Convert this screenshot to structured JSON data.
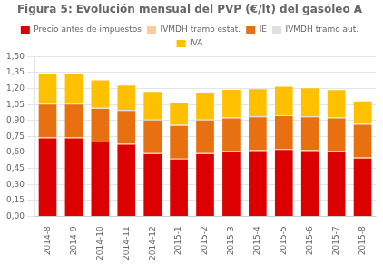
{
  "chart_data": {
    "type": "bar",
    "title": "Figura 5: Evolución mensual del PVP (€/lt) del gasóleo A",
    "categories": [
      "2014-8",
      "2014-9",
      "2014-10",
      "2014-11",
      "2014-12",
      "2015-1",
      "2015-2",
      "2015-3",
      "2015-4",
      "2015-5",
      "2015-6",
      "2015-7",
      "2015-8"
    ],
    "stacked": true,
    "series": [
      {
        "name": "Precio antes de impuestos",
        "color": "#dd0000",
        "values": [
          0.733,
          0.733,
          0.693,
          0.673,
          0.583,
          0.533,
          0.583,
          0.603,
          0.613,
          0.623,
          0.613,
          0.603,
          0.543
        ]
      },
      {
        "name": "IVMDH tramo estat.",
        "color": "#ffcc99",
        "values": [
          0.01,
          0.01,
          0.01,
          0.01,
          0.01,
          0.01,
          0.01,
          0.01,
          0.01,
          0.01,
          0.01,
          0.01,
          0.01
        ]
      },
      {
        "name": "IE",
        "color": "#e87010",
        "values": [
          0.307,
          0.307,
          0.307,
          0.307,
          0.307,
          0.307,
          0.307,
          0.307,
          0.307,
          0.307,
          0.307,
          0.307,
          0.307
        ]
      },
      {
        "name": "IVMDH tramo aut.",
        "color": "#e0e0e0",
        "values": [
          0.01,
          0.01,
          0.01,
          0.01,
          0.01,
          0.01,
          0.01,
          0.01,
          0.01,
          0.01,
          0.01,
          0.01,
          0.01
        ]
      },
      {
        "name": "IVA",
        "color": "#ffc000",
        "values": [
          0.278,
          0.278,
          0.258,
          0.228,
          0.258,
          0.205,
          0.248,
          0.258,
          0.255,
          0.268,
          0.263,
          0.255,
          0.21
        ]
      }
    ],
    "ylim": [
      0,
      1.5
    ],
    "yticks": [
      {
        "value": 0.0,
        "label": "0,00"
      },
      {
        "value": 0.15,
        "label": "0,15"
      },
      {
        "value": 0.3,
        "label": "0,30"
      },
      {
        "value": 0.45,
        "label": "0,45"
      },
      {
        "value": 0.6,
        "label": "0,60"
      },
      {
        "value": 0.75,
        "label": "0,75"
      },
      {
        "value": 0.9,
        "label": "0,90"
      },
      {
        "value": 1.05,
        "label": "1,05"
      },
      {
        "value": 1.2,
        "label": "1,20"
      },
      {
        "value": 1.35,
        "label": "1,35"
      },
      {
        "value": 1.5,
        "label": "1,50"
      }
    ],
    "grid": true,
    "legend": "top"
  }
}
